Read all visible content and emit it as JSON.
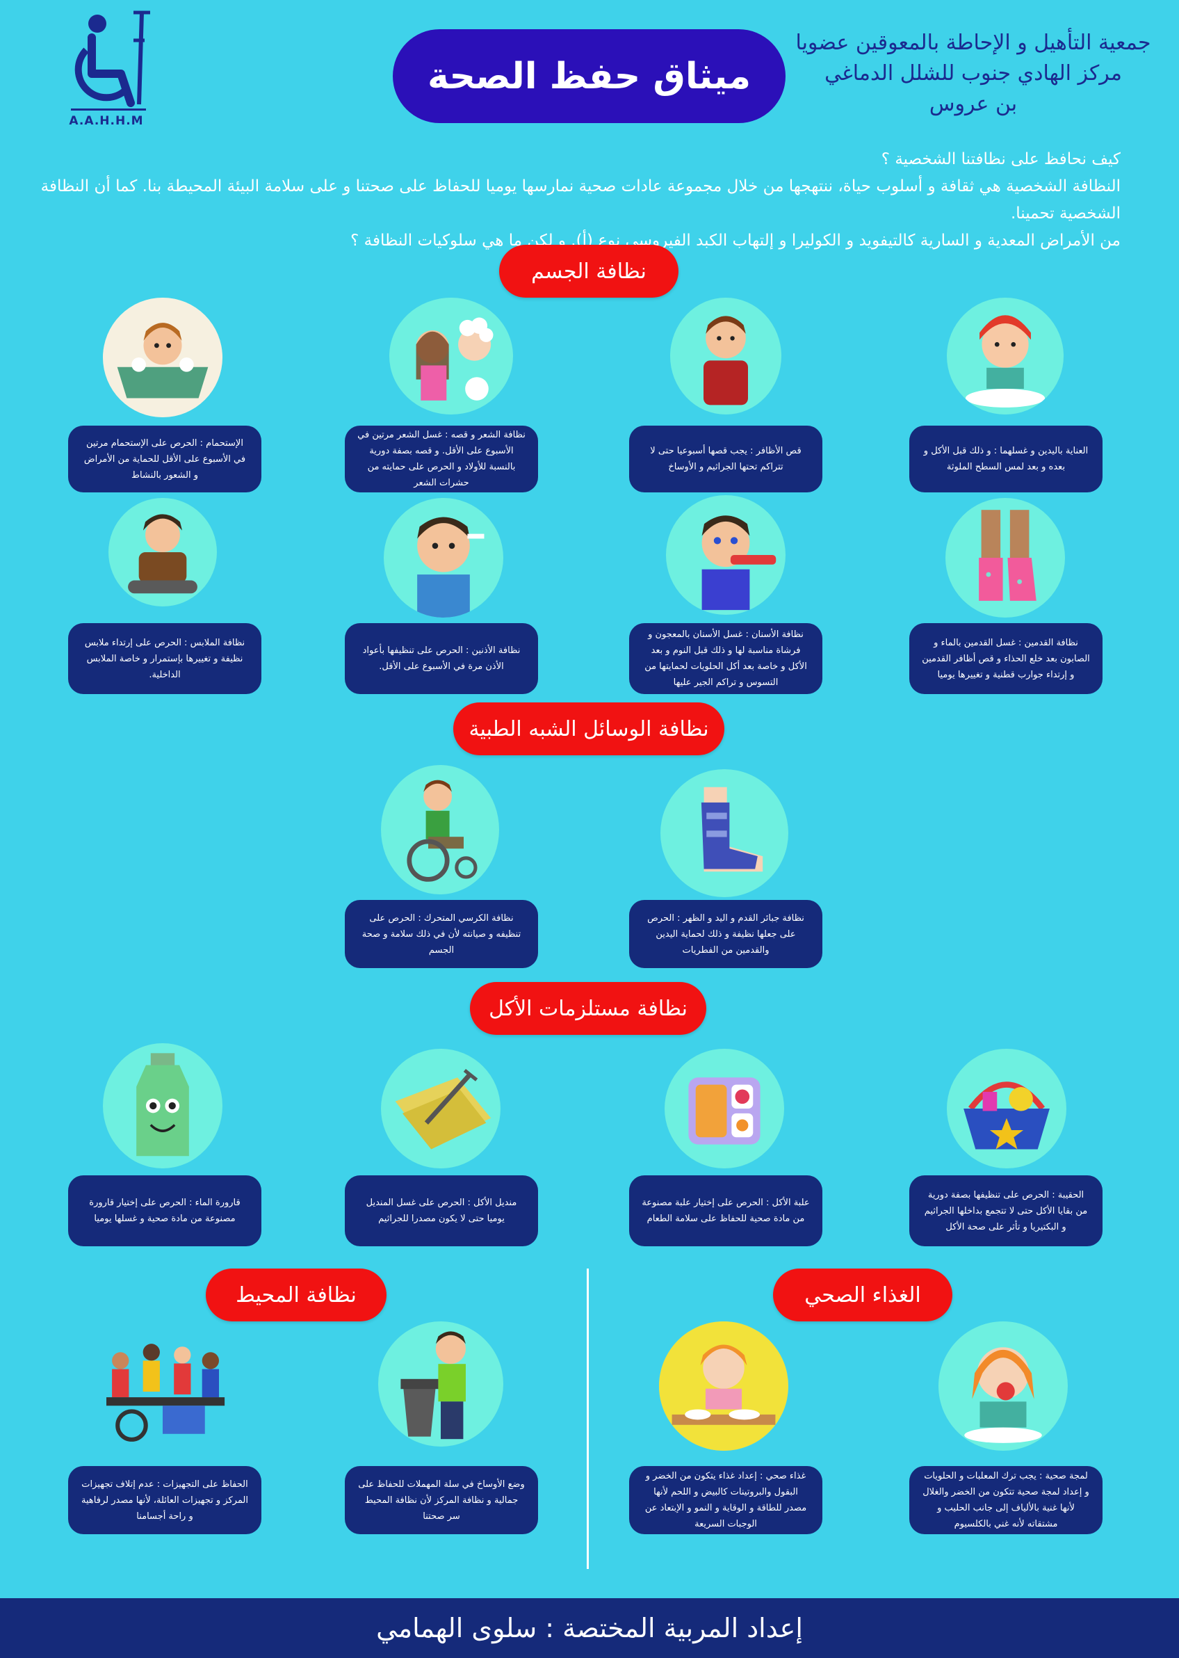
{
  "header": {
    "logo_text": "A.A.H.H.M",
    "title": "ميثاق حفظ الصحة",
    "org_line1": "جمعية التأهيل و الإحاطة بالمعوقين عضويا",
    "org_line2": "مركز الهادي جنوب للشلل الدماغي",
    "org_line3": "بن عروس"
  },
  "intro": {
    "line1": "كيف نحافظ على نظافتنا الشخصية ؟",
    "line2": "النظافة الشخصية هي ثقافة و أسلوب حياة، ننتهجها من خلال مجموعة عادات صحية نمارسها يوميا للحفاظ على صحتنا و على سلامة البيئة المحيطة بنا. كما أن النظافة الشخصية تحمينا.",
    "line3": "من الأمراض المعدية و السارية كالتيفويد و الكوليرا و إلتهاب الكبد الفيروسي نوع (أ). و لكن ما هي سلوكيات النظافة ؟"
  },
  "sections": {
    "body": "نظافة الجسم",
    "medical": "نظافة الوسائل الشبه الطبية",
    "eating": "نظافة مستلزمات الأكل",
    "environment": "نظافة المحيط",
    "food": "الغذاء الصحي"
  },
  "cards": {
    "hands": "العناية باليدين و غسلهما : و ذلك قبل الأكل و بعده و بعد لمس السطح الملوثة",
    "nails": "قص الأظافر : يجب قصها أسبوعيا حتى لا تتراكم تحتها الجراثيم و الأوساخ",
    "hair": "نظافة الشعر و قصه : غسل الشعر مرتين في الأسبوع على الأقل. و قصه بصفة دورية بالنسبة للأولاد و الحرص على حمايته من حشرات الشعر",
    "bath": "الإستحمام : الحرص على الإستحمام مرتين في الأسبوع على الأقل للحماية من الأمراض و الشعور بالنشاط",
    "feet": "نظافة القدمين : غسل القدمين بالماء و الصابون بعد خلع الحذاء و قص أظافر القدمين و إرتداء جوارب قطنية و تغييرها يوميا",
    "teeth": "نظافة الأسنان : غسل الأسنان بالمعجون و فرشاة مناسبة لها و ذلك قبل النوم و بعد الأكل و خاصة بعد أكل الحلويات لحمايتها من التسوس و تراكم الجير عليها",
    "ears": "نظافة الأذنين : الحرص على تنظيفها بأعواد الأذن مرة في الأسبوع على الأقل.",
    "clothes": "نظافة الملابس : الحرص على إرتداء ملابس نظيفة و تغييرها بإستمرار و خاصة الملابس الداخلية.",
    "brace": "نظافة جبائر القدم و اليد و الظهر : الحرص على جعلها نظيفة و ذلك لحماية اليدين والقدمين من الفطريات",
    "wheelchair": "نظافة الكرسي المتحرك : الحرص على تنظيفه و صيانته لأن في ذلك سلامة و صحة الجسم",
    "bag": "الحقيبة : الحرص على تنظيفها بصفة دورية من بقايا الأكل حتى لا تتجمع بداخلها الجراثيم و البكتيريا و تأثر على صحة الأكل",
    "lunchbox": "علبة الأكل : الحرص على إختيار علبة مصنوعة من مادة صحية للحفاظ على سلامة الطعام",
    "napkin": "منديل الأكل : الحرص على غسل المنديل يوميا حتى لا يكون مصدرا للجراثيم",
    "bottle": "قارورة الماء : الحرص على إختيار قارورة مصنوعة من مادة صحية و غسلها يوميا",
    "snack": "لمجة صحية : يجب ترك المعلبات و الحلويات و إعداد لمجة صحية تتكون من الخضر والغلال لأنها غنية بالألياف إلى جانب الحليب و مشتقاته لأنه غني بالكلسيوم",
    "meal": "غذاء صحي : إعداد غذاء يتكون من الخضر و البقول والبروتينات كالبيض و اللحم لأنها مصدر للطاقة و الوقاية و النمو و الإبتعاد عن الوجبات السريعة",
    "trash": "وضع الأوساخ في سلة المهملات للحفاظ على جمالية و نظافة المركز لأن نظافة المحيط سر صحتنا",
    "equipment": "الحفاظ على التجهيزات : عدم إتلاف تجهيزات المركز و تجهيزات العائلة، لأنها مصدر لرفاهية و راحة أجسامنا"
  },
  "footer": "إعداد المربية المختصة : سلوى الهمامي",
  "colors": {
    "background": "#3fd2ea",
    "card": "#152a7a",
    "pill": "#f11212",
    "title": "#2b10b8"
  }
}
